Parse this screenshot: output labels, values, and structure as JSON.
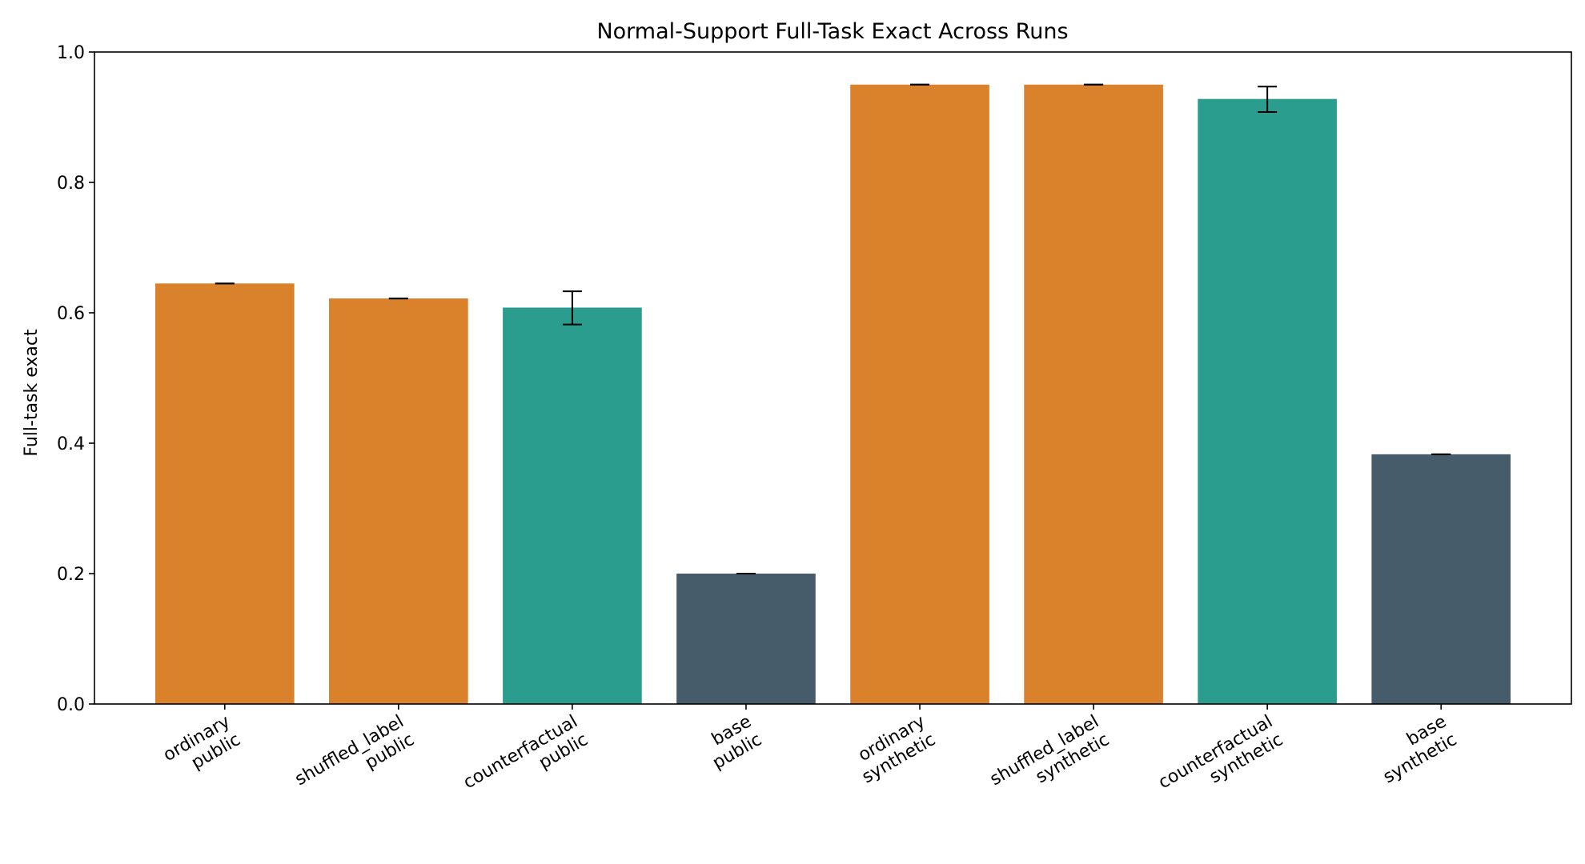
{
  "chart_data": {
    "type": "bar",
    "title": "Normal-Support Full-Task Exact Across Runs",
    "xlabel": "",
    "ylabel": "Full-task exact",
    "ylim": [
      0,
      1.0
    ],
    "yticks": [
      "0.0",
      "0.2",
      "0.4",
      "0.6",
      "0.8",
      "1.0"
    ],
    "grid": false,
    "categories": [
      [
        "ordinary",
        "public"
      ],
      [
        "shuffled_label",
        "public"
      ],
      [
        "counterfactual",
        "public"
      ],
      [
        "base",
        "public"
      ],
      [
        "ordinary",
        "synthetic"
      ],
      [
        "shuffled_label",
        "synthetic"
      ],
      [
        "counterfactual",
        "synthetic"
      ],
      [
        "base",
        "synthetic"
      ]
    ],
    "values": [
      0.645,
      0.622,
      0.608,
      0.2,
      0.95,
      0.95,
      0.928,
      0.383
    ],
    "error_low": [
      0.645,
      0.622,
      0.582,
      0.2,
      0.95,
      0.95,
      0.908,
      0.383
    ],
    "error_high": [
      0.645,
      0.622,
      0.633,
      0.2,
      0.95,
      0.95,
      0.947,
      0.383
    ],
    "colors": [
      "#d9822b",
      "#d9822b",
      "#2a9d8f",
      "#475c6a",
      "#d9822b",
      "#d9822b",
      "#2a9d8f",
      "#475c6a"
    ]
  }
}
